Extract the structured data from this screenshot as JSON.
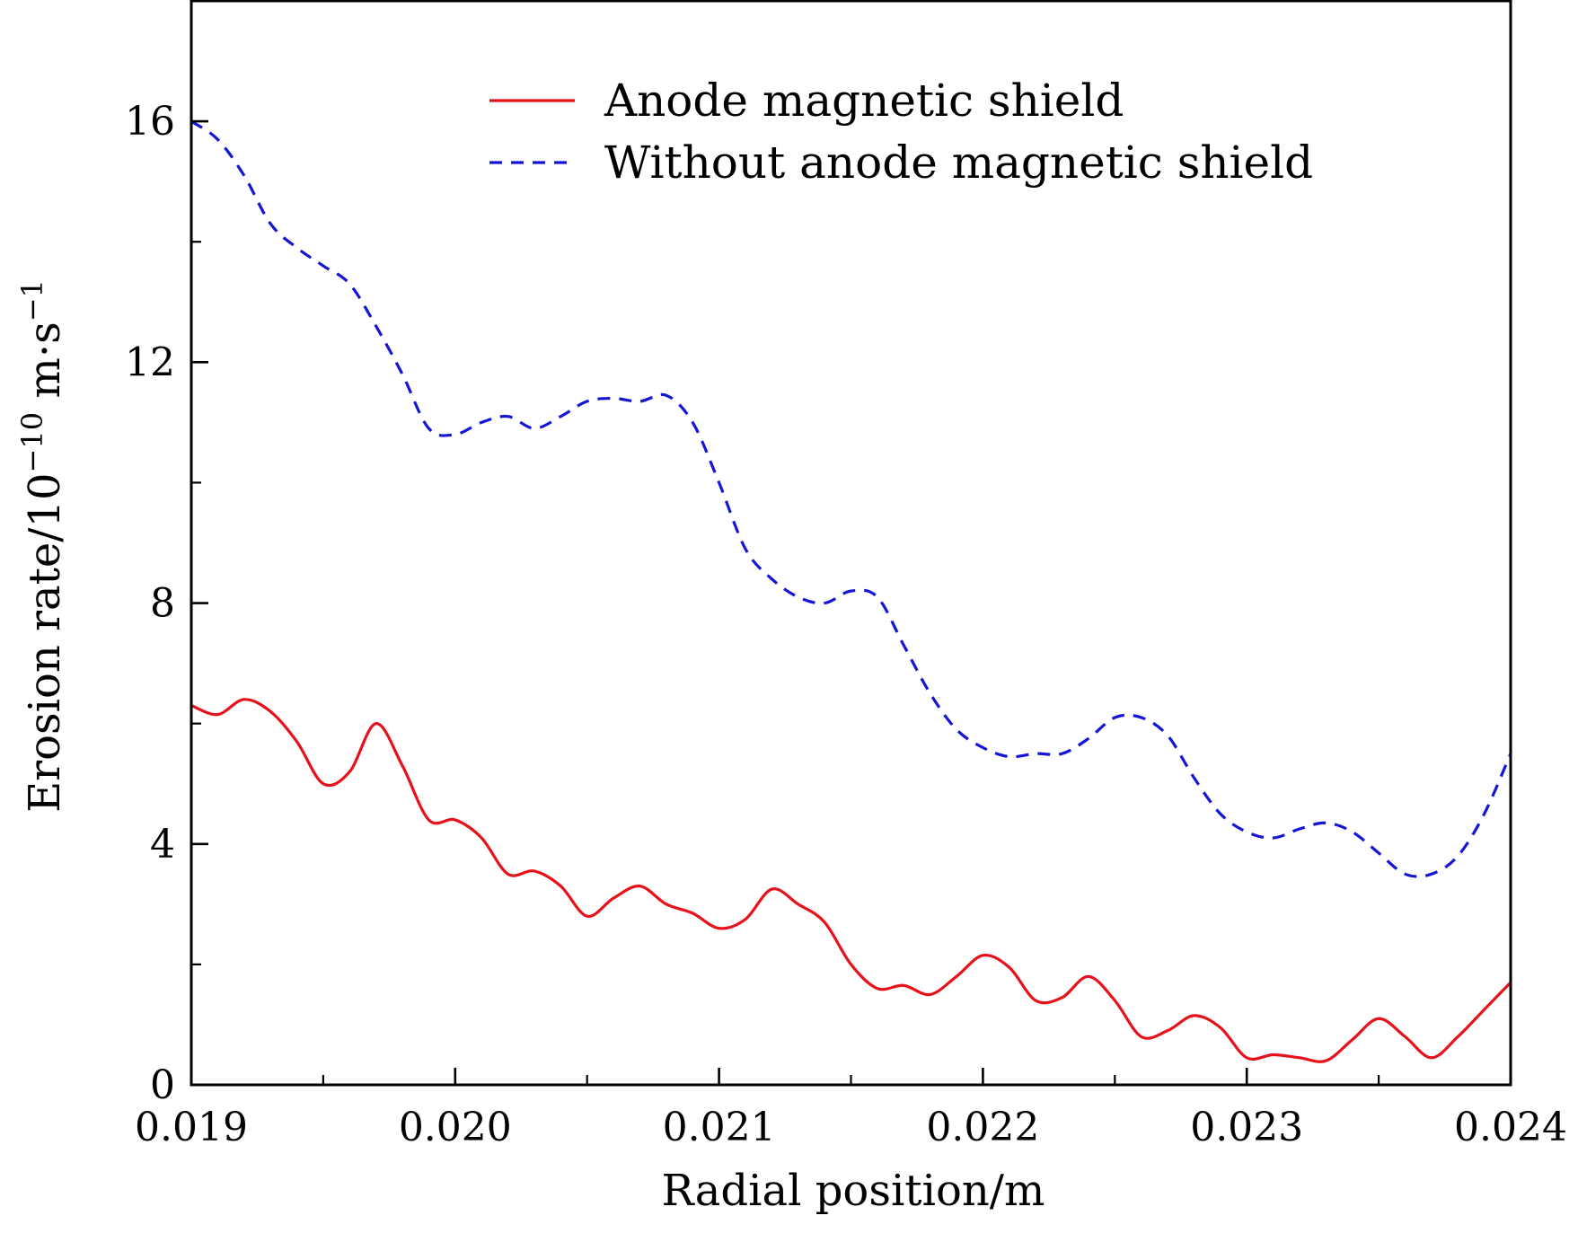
{
  "chart_data": {
    "type": "line",
    "title": "",
    "xlabel": "Radial position/m",
    "ylabel_main": "Erosion rate/10",
    "ylabel_exp": "−10",
    "ylabel_units": " m·s",
    "ylabel_units_exp": "−1",
    "xlim": [
      0.019,
      0.024
    ],
    "ylim": [
      0,
      18
    ],
    "x_ticks": [
      0.019,
      0.02,
      0.021,
      0.022,
      0.023,
      0.024
    ],
    "x_tick_labels": [
      "0.019",
      "0.020",
      "0.021",
      "0.022",
      "0.023",
      "0.024"
    ],
    "x_minor_ticks": [
      0.0195,
      0.0205,
      0.0215,
      0.0225,
      0.0235
    ],
    "y_ticks": [
      0,
      4,
      8,
      12,
      16
    ],
    "y_tick_labels": [
      "0",
      "4",
      "8",
      "12",
      "16"
    ],
    "y_minor_ticks": [
      2,
      6,
      10,
      14
    ],
    "grid": false,
    "legend_position": "top-right",
    "series": [
      {
        "name": "Anode magnetic shield",
        "color": "#e8101a",
        "style": "solid",
        "x": [
          0.019,
          0.0191,
          0.0192,
          0.0193,
          0.0194,
          0.0195,
          0.0196,
          0.0197,
          0.0198,
          0.0199,
          0.02,
          0.0201,
          0.0202,
          0.0203,
          0.0204,
          0.0205,
          0.0206,
          0.0207,
          0.0208,
          0.0209,
          0.021,
          0.0211,
          0.0212,
          0.0213,
          0.0214,
          0.0215,
          0.0216,
          0.0217,
          0.0218,
          0.0219,
          0.022,
          0.0221,
          0.0222,
          0.0223,
          0.0224,
          0.0225,
          0.0226,
          0.0227,
          0.0228,
          0.0229,
          0.023,
          0.0231,
          0.0232,
          0.0233,
          0.0234,
          0.0235,
          0.0236,
          0.0237,
          0.0238,
          0.0239,
          0.024
        ],
        "y": [
          6.3,
          6.15,
          6.4,
          6.2,
          5.7,
          5.0,
          5.2,
          6.0,
          5.3,
          4.4,
          4.4,
          4.1,
          3.5,
          3.55,
          3.3,
          2.8,
          3.1,
          3.3,
          3.0,
          2.85,
          2.6,
          2.75,
          3.25,
          3.0,
          2.7,
          2.0,
          1.6,
          1.65,
          1.5,
          1.8,
          2.15,
          1.95,
          1.4,
          1.45,
          1.8,
          1.4,
          0.8,
          0.9,
          1.15,
          0.95,
          0.45,
          0.5,
          0.45,
          0.4,
          0.75,
          1.1,
          0.8,
          0.45,
          0.8,
          1.25,
          1.7
        ]
      },
      {
        "name": "Without anode magnetic shield",
        "color": "#1515d6",
        "style": "dashed",
        "x": [
          0.019,
          0.0191,
          0.0192,
          0.0193,
          0.0194,
          0.0195,
          0.0196,
          0.0197,
          0.0198,
          0.0199,
          0.02,
          0.0201,
          0.0202,
          0.0203,
          0.0204,
          0.0205,
          0.0206,
          0.0207,
          0.0208,
          0.0209,
          0.021,
          0.0211,
          0.0212,
          0.0213,
          0.0214,
          0.0215,
          0.0216,
          0.0217,
          0.0218,
          0.0219,
          0.022,
          0.0221,
          0.0222,
          0.0223,
          0.0224,
          0.0225,
          0.0226,
          0.0227,
          0.0228,
          0.0229,
          0.023,
          0.0231,
          0.0232,
          0.0233,
          0.0234,
          0.0235,
          0.0236,
          0.0237,
          0.0238,
          0.0239,
          0.024
        ],
        "y": [
          16.0,
          15.7,
          15.1,
          14.3,
          13.9,
          13.6,
          13.3,
          12.6,
          11.8,
          10.9,
          10.8,
          11.0,
          11.1,
          10.9,
          11.1,
          11.35,
          11.4,
          11.35,
          11.45,
          11.0,
          10.0,
          8.9,
          8.4,
          8.1,
          8.0,
          8.2,
          8.1,
          7.3,
          6.5,
          5.9,
          5.6,
          5.45,
          5.5,
          5.5,
          5.75,
          6.1,
          6.1,
          5.8,
          5.1,
          4.5,
          4.2,
          4.1,
          4.25,
          4.35,
          4.2,
          3.85,
          3.5,
          3.5,
          3.8,
          4.5,
          5.5
        ]
      }
    ]
  }
}
